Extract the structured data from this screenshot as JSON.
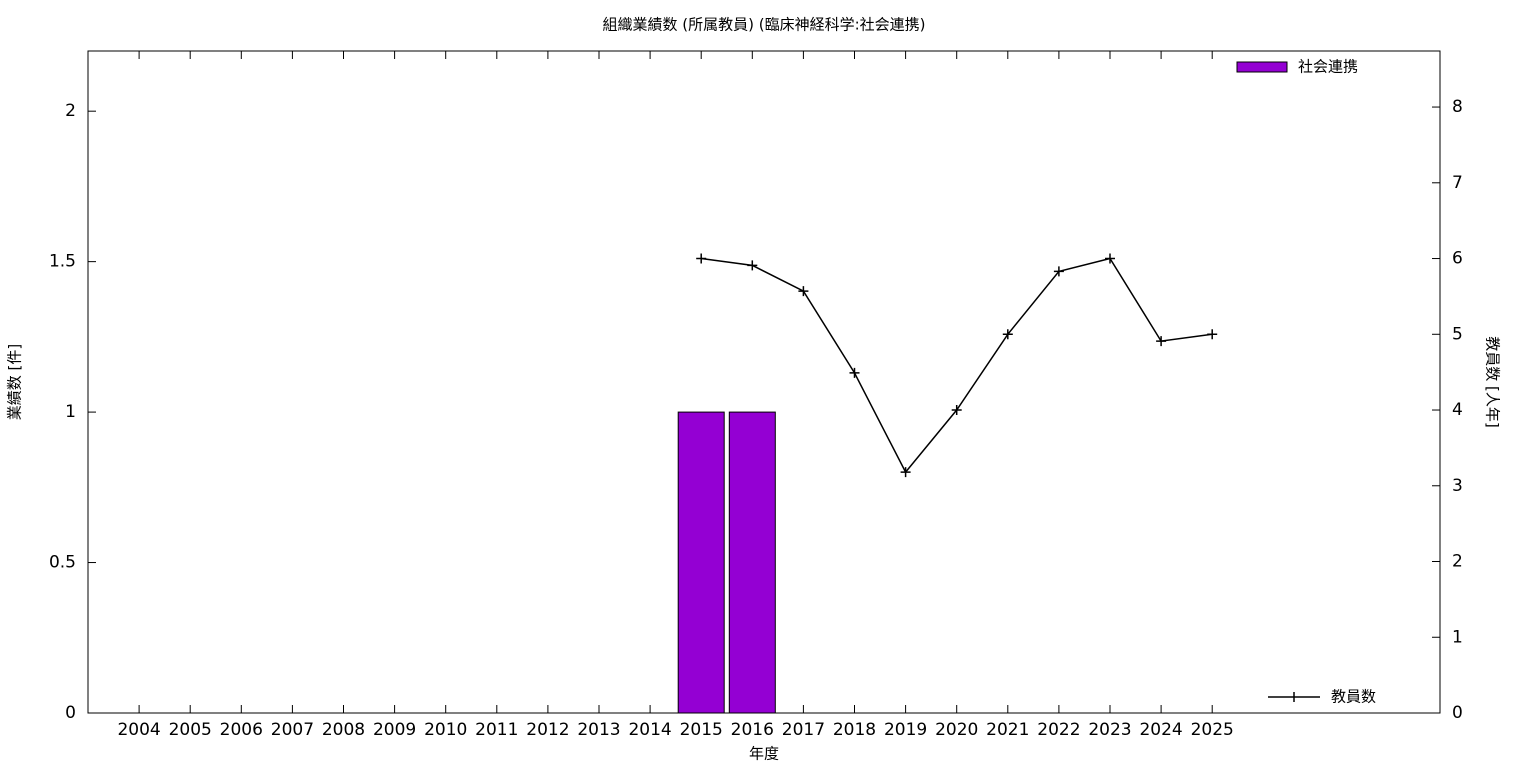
{
  "chart_data": {
    "type": "bar-line",
    "title": "組織業績数 (所属教員) (臨床神経科学:社会連携)",
    "xlabel": "年度",
    "ylabel": "業績数 [件]",
    "y2label": "教員数 [人年]",
    "categories": [
      "2004",
      "2005",
      "2006",
      "2007",
      "2008",
      "2009",
      "2010",
      "2011",
      "2012",
      "2013",
      "2014",
      "2015",
      "2016",
      "2017",
      "2018",
      "2019",
      "2020",
      "2021",
      "2022",
      "2023",
      "2024",
      "2025"
    ],
    "series": [
      {
        "name": "社会連携",
        "type": "bar",
        "color": "#9400d3",
        "legend": "top-right",
        "values": [
          0,
          0,
          0,
          0,
          0,
          0,
          0,
          0,
          0,
          0,
          0,
          1,
          1,
          0,
          0,
          0,
          0,
          0,
          0,
          0,
          0,
          0
        ]
      },
      {
        "name": "教員数",
        "type": "line",
        "color": "#000000",
        "axis": "y2",
        "legend": "bottom-right",
        "values": [
          null,
          null,
          null,
          null,
          null,
          null,
          null,
          null,
          null,
          null,
          null,
          6.0,
          5.91,
          5.57,
          4.49,
          3.18,
          4.0,
          5.0,
          5.83,
          6.0,
          4.91,
          5.0
        ]
      }
    ],
    "ylim": [
      0,
      2.2
    ],
    "yticks": [
      0,
      0.5,
      1,
      1.5,
      2
    ],
    "y2lim": [
      0,
      8.74
    ],
    "y2ticks": [
      0,
      1,
      2,
      3,
      4,
      5,
      6,
      7,
      8
    ],
    "grid": false
  }
}
